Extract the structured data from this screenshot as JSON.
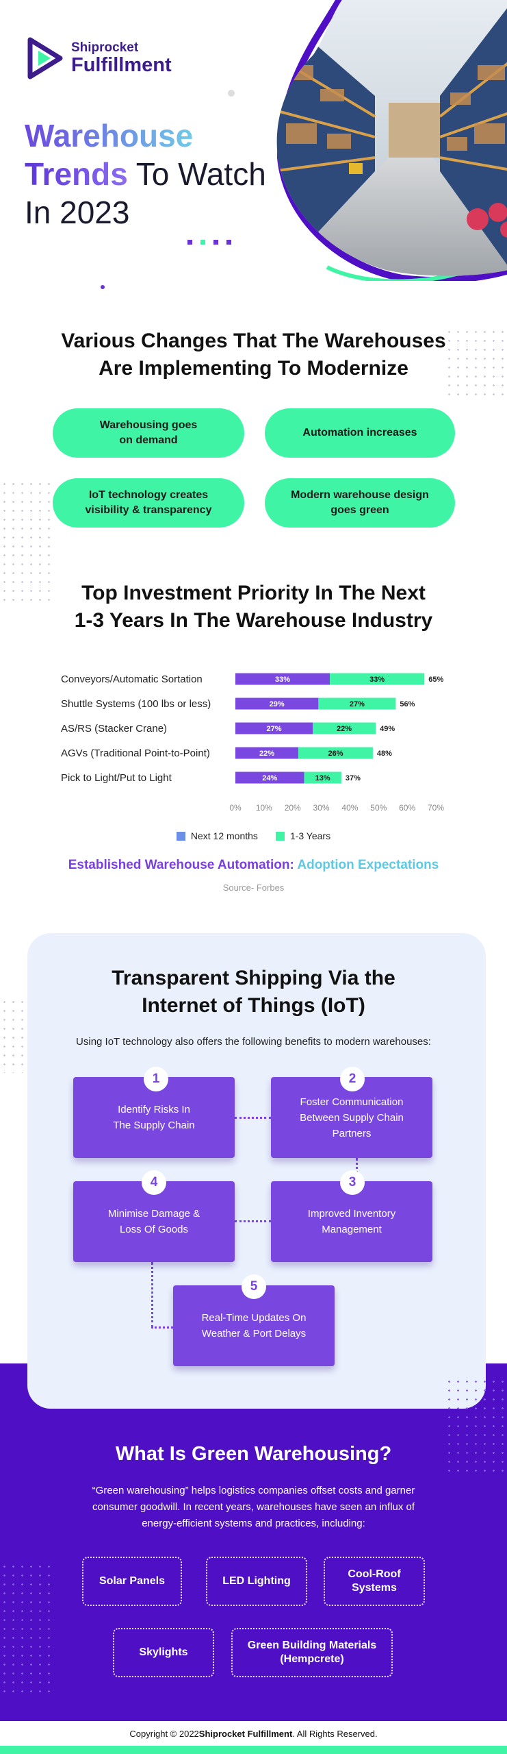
{
  "brand": {
    "line1": "Shiprocket",
    "line2": "Fulfillment"
  },
  "hero": {
    "word1": "Warehouse",
    "word2": "Trends",
    "rest2": " To Watch",
    "line3": "In 2023"
  },
  "changes": {
    "title_line1": "Various Changes That The Warehouses",
    "title_line2": "Are Implementing To Modernize",
    "items": [
      {
        "l1": "Warehousing goes",
        "l2": "on demand"
      },
      {
        "l1": "Automation increases",
        "l2": ""
      },
      {
        "l1": "IoT technology creates",
        "l2": "visibility & transparency"
      },
      {
        "l1": "Modern warehouse design",
        "l2": "goes green"
      }
    ]
  },
  "investment": {
    "title_line1": "Top Investment Priority In The Next",
    "title_line2": "1-3 Years In The Warehouse Industry"
  },
  "chart_data": {
    "type": "bar",
    "orientation": "horizontal",
    "stacked": true,
    "categories": [
      "Conveyors/Automatic Sortation",
      "Shuttle Systems (100 lbs or less)",
      "AS/RS (Stacker Crane)",
      "AGVs (Traditional Point-to-Point)",
      "Pick to Light/Put to Light"
    ],
    "series": [
      {
        "name": "Next 12 months",
        "values": [
          33,
          29,
          27,
          22,
          24
        ],
        "labels": [
          "33%",
          "29%",
          "27%",
          "22%",
          "24%"
        ],
        "color": "#7b47e1"
      },
      {
        "name": "1-3 Years",
        "values": [
          33,
          27,
          22,
          26,
          13
        ],
        "labels": [
          "33%",
          "27%",
          "22%",
          "26%",
          "13%"
        ],
        "color": "#3ff5a5"
      }
    ],
    "totals": [
      "65%",
      "56%",
      "49%",
      "48%",
      "37%"
    ],
    "xlim": [
      0,
      70
    ],
    "xticks": [
      "0%",
      "10%",
      "20%",
      "30%",
      "40%",
      "50%",
      "60%",
      "70%"
    ],
    "legend": {
      "position": "bottom",
      "items": [
        "Next 12 months",
        "1-3 Years"
      ],
      "swatch_colors": [
        "#6b8ee6",
        "#3ff5a5"
      ]
    },
    "caption_part1": "Established Warehouse Automation:",
    "caption_part2": "Adoption Expectations",
    "source": "Source- Forbes",
    "grid": false
  },
  "iot": {
    "title_line1": "Transparent Shipping Via the",
    "title_line2": "Internet of Things (IoT)",
    "intro": "Using IoT technology also offers the following benefits to modern warehouses:",
    "steps": [
      {
        "num": "1",
        "l1": "Identify Risks In",
        "l2": "The Supply Chain",
        "l3": ""
      },
      {
        "num": "2",
        "l1": "Foster Communication",
        "l2": "Between Supply Chain",
        "l3": "Partners"
      },
      {
        "num": "3",
        "l1": "Improved Inventory",
        "l2": "Management",
        "l3": ""
      },
      {
        "num": "4",
        "l1": "Minimise Damage &",
        "l2": "Loss Of Goods",
        "l3": ""
      },
      {
        "num": "5",
        "l1": "Real-Time Updates On",
        "l2": "Weather & Port Delays",
        "l3": ""
      }
    ]
  },
  "green": {
    "title": "What Is Green Warehousing?",
    "intro": "“Green warehousing” helps logistics companies offset costs and garner consumer goodwill. In recent years, warehouses have seen an influx of energy-efficient systems and practices, including:",
    "items": [
      {
        "l1": "Solar Panels",
        "l2": ""
      },
      {
        "l1": "LED Lighting",
        "l2": ""
      },
      {
        "l1": "Cool-Roof",
        "l2": "Systems"
      },
      {
        "l1": "Skylights",
        "l2": ""
      },
      {
        "l1": "Green Building Materials",
        "l2": "(Hempcrete)"
      }
    ]
  },
  "footer": {
    "prefix": "Copyright © 2022 ",
    "brand": "Shiprocket Fulfillment",
    "suffix": ". All Rights Reserved."
  },
  "colors": {
    "purple": "#7a46e0",
    "deep_purple": "#4f0fc4",
    "mint": "#3ff5a5",
    "light_blue_bg": "#eaf1fd"
  }
}
